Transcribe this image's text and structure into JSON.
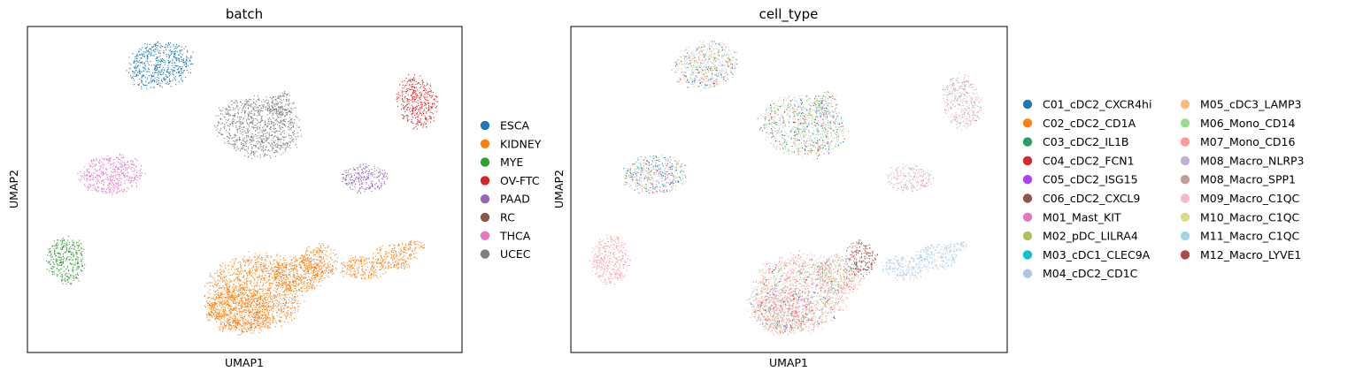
{
  "chart_data": [
    {
      "type": "scatter",
      "title": "batch",
      "xlabel": "UMAP1",
      "ylabel": "UMAP2",
      "grid": false,
      "ticks": false,
      "legend": "right",
      "legend_columns": 1,
      "series": [
        {
          "name": "ESCA",
          "color": "#1f77b4"
        },
        {
          "name": "KIDNEY",
          "color": "#ff7f0e"
        },
        {
          "name": "MYE",
          "color": "#2ca02c"
        },
        {
          "name": "OV-FTC",
          "color": "#d62728"
        },
        {
          "name": "PAAD",
          "color": "#9467bd"
        },
        {
          "name": "RC",
          "color": "#8c564b"
        },
        {
          "name": "THCA",
          "color": "#e377c2"
        },
        {
          "name": "UCEC",
          "color": "#7f7f7f"
        }
      ]
    },
    {
      "type": "scatter",
      "title": "cell_type",
      "xlabel": "UMAP1",
      "ylabel": "UMAP2",
      "grid": false,
      "ticks": false,
      "legend": "right",
      "legend_columns": 2,
      "series": [
        {
          "name": "C01_cDC2_CXCR4hi",
          "color": "#1f77b4"
        },
        {
          "name": "C02_cDC2_CD1A",
          "color": "#ff7f0e"
        },
        {
          "name": "C03_cDC2_IL1B",
          "color": "#279e68"
        },
        {
          "name": "C04_cDC2_FCN1",
          "color": "#d62728"
        },
        {
          "name": "C05_cDC2_ISG15",
          "color": "#aa40fc"
        },
        {
          "name": "C06_cDC2_CXCL9",
          "color": "#8c564b"
        },
        {
          "name": "M01_Mast_KIT",
          "color": "#e377c2"
        },
        {
          "name": "M02_pDC_LILRA4",
          "color": "#b5bd61"
        },
        {
          "name": "M03_cDC1_CLEC9A",
          "color": "#17becf"
        },
        {
          "name": "M04_cDC2_CD1C",
          "color": "#aec7e8"
        },
        {
          "name": "M05_cDC3_LAMP3",
          "color": "#ffbb78"
        },
        {
          "name": "M06_Mono_CD14",
          "color": "#98df8a"
        },
        {
          "name": "M07_Mono_CD16",
          "color": "#ff9896"
        },
        {
          "name": "M08_Macro_NLRP3",
          "color": "#c5b0d5"
        },
        {
          "name": "M08_Macro_SPP1",
          "color": "#c49c94"
        },
        {
          "name": "M09_Macro_C1QC",
          "color": "#f7b6d2"
        },
        {
          "name": "M10_Macro_C1QC",
          "color": "#dbdb8d"
        },
        {
          "name": "M11_Macro_C1QC",
          "color": "#9edae5"
        },
        {
          "name": "M12_Macro_LYVE1",
          "color": "#ad494a"
        }
      ]
    }
  ]
}
